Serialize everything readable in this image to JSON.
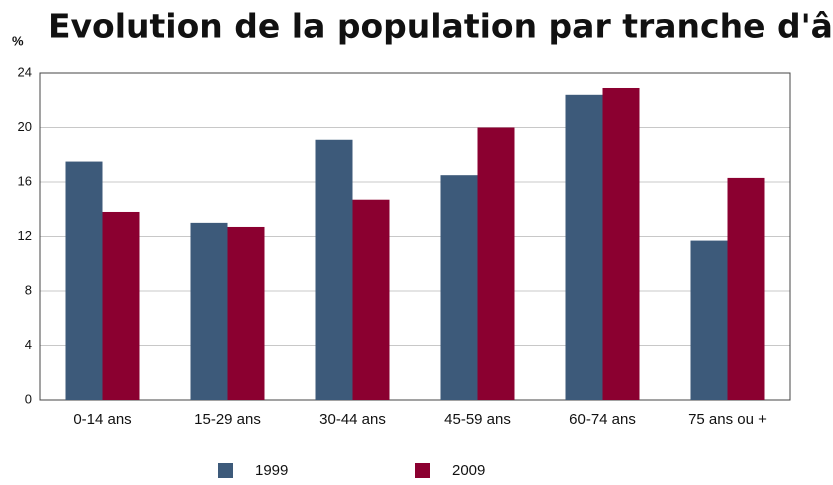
{
  "chart_data": {
    "type": "bar",
    "title": "Evolution de la population par tranche d'âge",
    "ylabel": "%",
    "categories": [
      "0-14 ans",
      "15-29 ans",
      "30-44 ans",
      "45-59 ans",
      "60-74 ans",
      "75 ans ou +"
    ],
    "series": [
      {
        "name": "1999",
        "color": "#3d5a7a",
        "values": [
          17.5,
          13.0,
          19.1,
          16.5,
          22.4,
          11.7
        ]
      },
      {
        "name": "2009",
        "color": "#8b0030",
        "values": [
          13.8,
          12.7,
          14.7,
          20.0,
          22.9,
          16.3
        ]
      }
    ],
    "ylim": [
      0,
      24
    ],
    "yticks": [
      0,
      4,
      8,
      12,
      16,
      20,
      24
    ],
    "grid": true,
    "legend": "bottom"
  }
}
